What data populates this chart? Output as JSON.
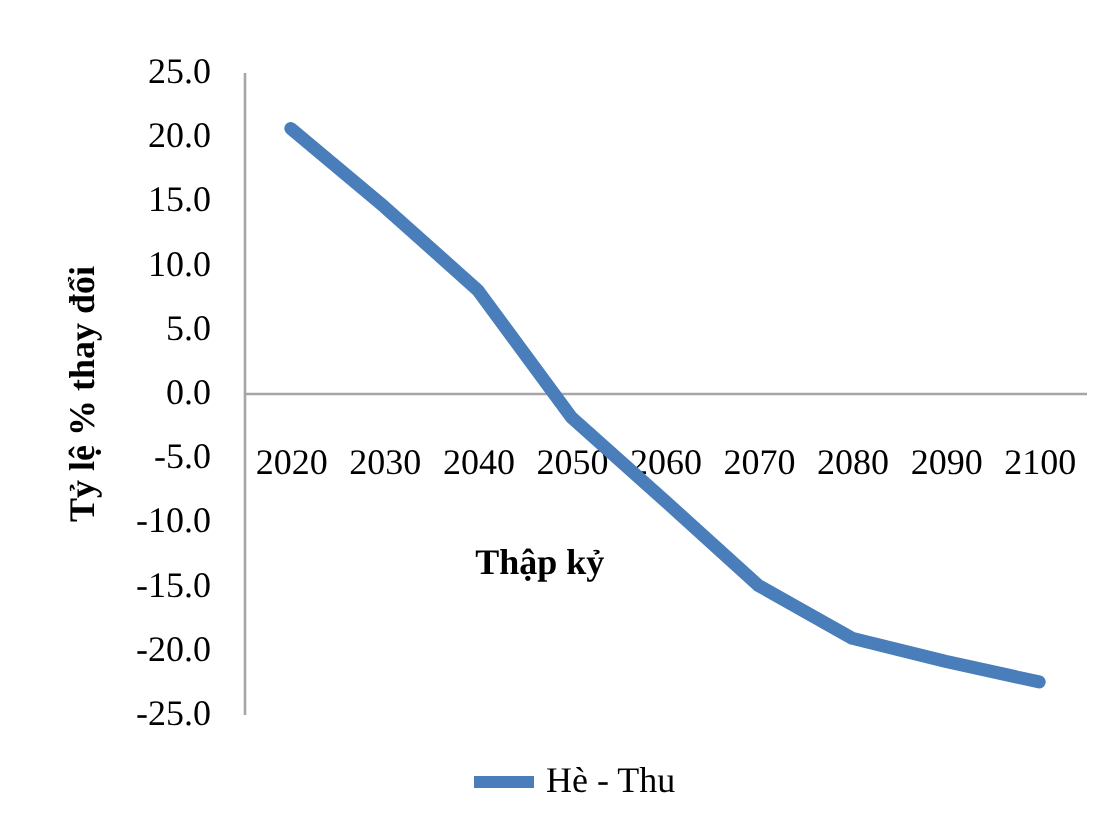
{
  "chart_data": {
    "type": "line",
    "categories": [
      "2020",
      "2030",
      "2040",
      "2050",
      "2060",
      "2070",
      "2080",
      "2090",
      "2100"
    ],
    "series": [
      {
        "name": "Hè - Thu",
        "color": "#4a7ebb",
        "values": [
          20.6,
          14.5,
          8.0,
          -1.9,
          -8.4,
          -15.0,
          -19.1,
          -20.9,
          -22.5
        ]
      }
    ],
    "xlabel": "Thập kỷ",
    "ylabel": "Tỷ lệ % thay đổi",
    "ylim": [
      -25,
      25
    ],
    "yticks": [
      {
        "value": -25,
        "label": "-25.0"
      },
      {
        "value": -20,
        "label": "-20.0"
      },
      {
        "value": -15,
        "label": "-15.0"
      },
      {
        "value": -10,
        "label": "-10.0"
      },
      {
        "value": -5,
        "label": "-5.0"
      },
      {
        "value": 0,
        "label": "0.0"
      },
      {
        "value": 5,
        "label": "5.0"
      },
      {
        "value": 10,
        "label": "10.0"
      },
      {
        "value": 15,
        "label": "15.0"
      },
      {
        "value": 20,
        "label": "20.0"
      },
      {
        "value": 25,
        "label": "25.0"
      }
    ],
    "legend": "bottom",
    "grid": false
  }
}
